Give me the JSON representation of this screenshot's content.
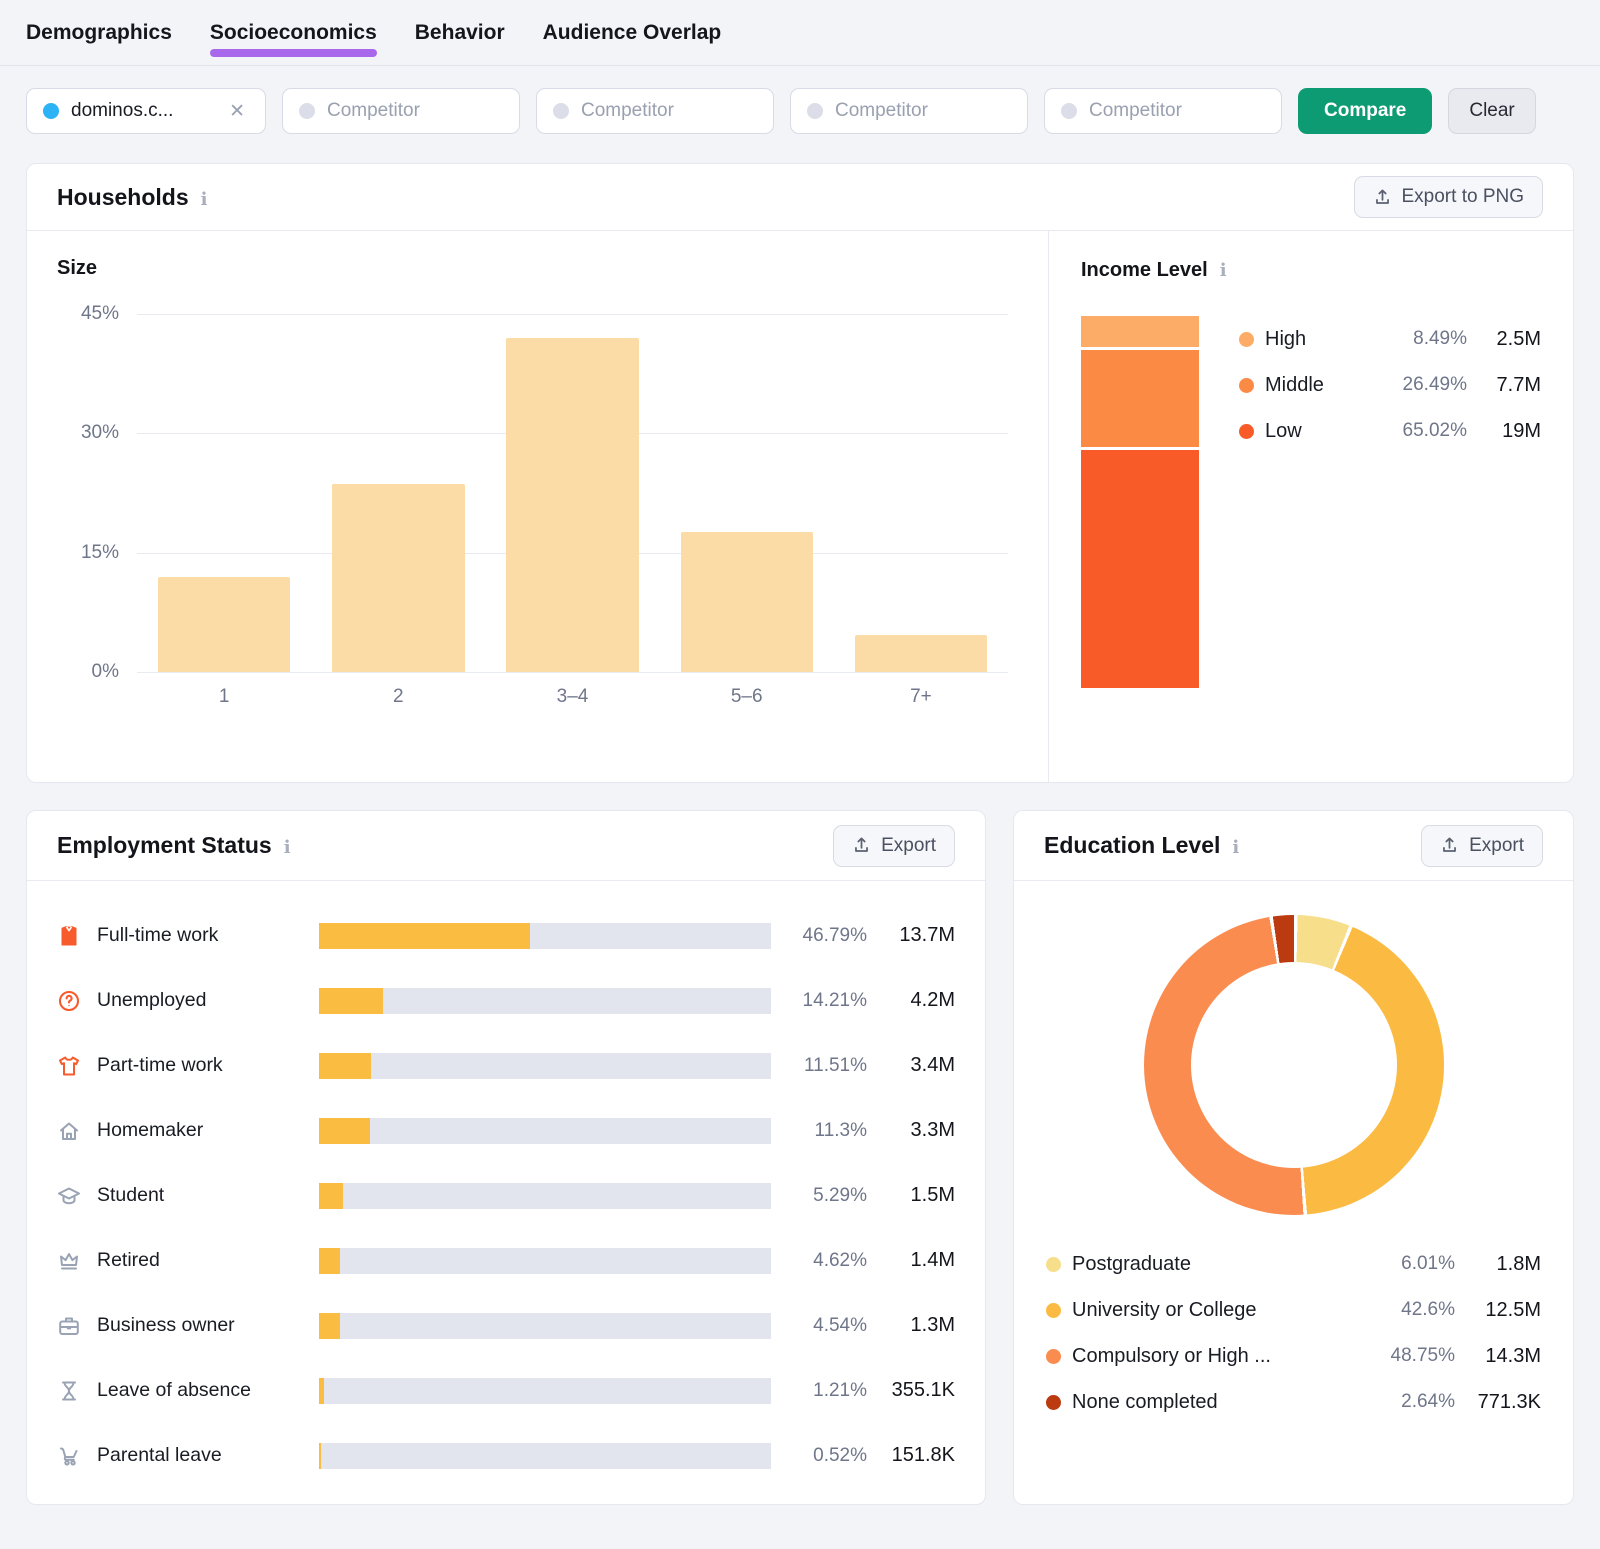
{
  "tabs": [
    {
      "label": "Demographics",
      "active": false
    },
    {
      "label": "Socioeconomics",
      "active": true
    },
    {
      "label": "Behavior",
      "active": false
    },
    {
      "label": "Audience Overlap",
      "active": false
    }
  ],
  "filters": {
    "domain_chip": {
      "label": "dominos.c...",
      "dot_color": "#2CB3F5",
      "close_glyph": "✕"
    },
    "competitor_placeholders": [
      "Competitor",
      "Competitor",
      "Competitor",
      "Competitor"
    ],
    "compare_label": "Compare",
    "clear_label": "Clear"
  },
  "households": {
    "title": "Households",
    "export_label": "Export to PNG"
  },
  "employment": {
    "title": "Employment Status",
    "export_label": "Export"
  },
  "education": {
    "title": "Education Level",
    "export_label": "Export"
  },
  "colors": {
    "accent_purple": "#A968EC",
    "compare_green": "#0D9B73",
    "bar_amber": "#FBBC42",
    "bar_track": "#E3E5EE"
  },
  "chart_data": [
    {
      "id": "household-size",
      "type": "bar",
      "title": "Size",
      "categories": [
        "1",
        "2",
        "3–4",
        "5–6",
        "7+"
      ],
      "values": [
        12,
        23.6,
        42,
        17.6,
        4.7
      ],
      "ylim": [
        0,
        45
      ],
      "yticks": [
        "45%",
        "30%",
        "15%",
        "0%"
      ],
      "grid": true,
      "bar_color": "#FCDCA6"
    },
    {
      "id": "income-level",
      "type": "stacked-bar",
      "title": "Income Level",
      "legend_position": "right",
      "segments": [
        {
          "label": "High",
          "pct": 8.49,
          "pct_label": "8.49%",
          "value": "2.5M",
          "color": "#FCAC67"
        },
        {
          "label": "Middle",
          "pct": 26.49,
          "pct_label": "26.49%",
          "value": "7.7M",
          "color": "#FB8A45"
        },
        {
          "label": "Low",
          "pct": 65.02,
          "pct_label": "65.02%",
          "value": "19M",
          "color": "#F95B28"
        }
      ]
    },
    {
      "id": "employment-status",
      "type": "bar-list",
      "rows": [
        {
          "label": "Full-time work",
          "icon": "shirt",
          "icon_color": "#F85B2B",
          "pct": 46.79,
          "pct_label": "46.79%",
          "value": "13.7M"
        },
        {
          "label": "Unemployed",
          "icon": "question",
          "icon_color": "#F85B2B",
          "pct": 14.21,
          "pct_label": "14.21%",
          "value": "4.2M"
        },
        {
          "label": "Part-time work",
          "icon": "tshirt",
          "icon_color": "#F85B2B",
          "pct": 11.51,
          "pct_label": "11.51%",
          "value": "3.4M"
        },
        {
          "label": "Homemaker",
          "icon": "house",
          "icon_color": "#9AA3B4",
          "pct": 11.3,
          "pct_label": "11.3%",
          "value": "3.3M"
        },
        {
          "label": "Student",
          "icon": "grad-cap",
          "icon_color": "#9AA3B4",
          "pct": 5.29,
          "pct_label": "5.29%",
          "value": "1.5M"
        },
        {
          "label": "Retired",
          "icon": "crown",
          "icon_color": "#9AA3B4",
          "pct": 4.62,
          "pct_label": "4.62%",
          "value": "1.4M"
        },
        {
          "label": "Business owner",
          "icon": "briefcase",
          "icon_color": "#9AA3B4",
          "pct": 4.54,
          "pct_label": "4.54%",
          "value": "1.3M"
        },
        {
          "label": "Leave of absence",
          "icon": "hourglass",
          "icon_color": "#9AA3B4",
          "pct": 1.21,
          "pct_label": "1.21%",
          "value": "355.1K"
        },
        {
          "label": "Parental leave",
          "icon": "stroller",
          "icon_color": "#9AA3B4",
          "pct": 0.52,
          "pct_label": "0.52%",
          "value": "151.8K"
        }
      ]
    },
    {
      "id": "education-level",
      "type": "donut",
      "legend_position": "bottom",
      "segments": [
        {
          "label": "Postgraduate",
          "pct": 6.01,
          "pct_label": "6.01%",
          "value": "1.8M",
          "color": "#F7DE8B"
        },
        {
          "label": "University or College",
          "pct": 42.6,
          "pct_label": "42.6%",
          "value": "12.5M",
          "color": "#FBBA41"
        },
        {
          "label": "Compulsory or High ...",
          "pct": 48.75,
          "pct_label": "48.75%",
          "value": "14.3M",
          "color": "#FA8C4F"
        },
        {
          "label": "None completed",
          "pct": 2.64,
          "pct_label": "2.64%",
          "value": "771.3K",
          "color": "#BC3A10"
        }
      ]
    }
  ]
}
